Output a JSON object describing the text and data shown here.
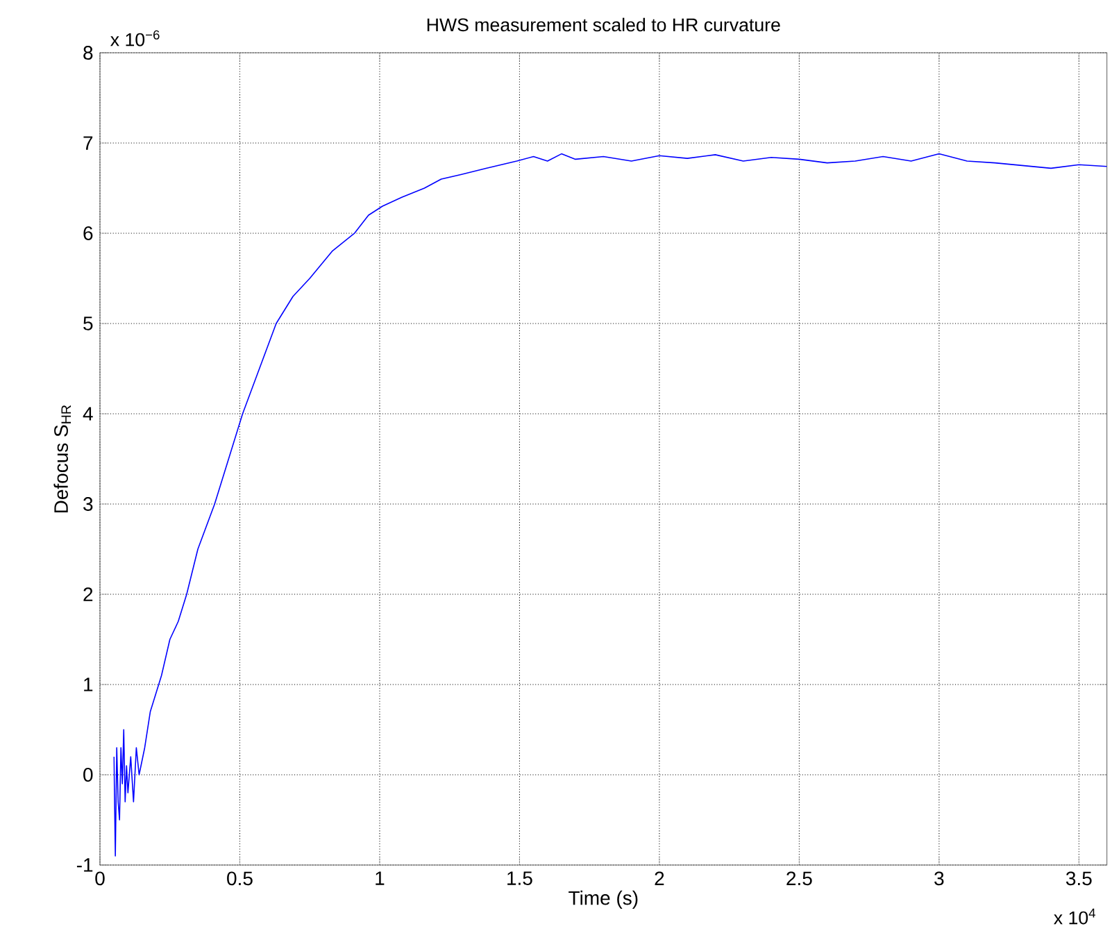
{
  "chart_data": {
    "type": "line",
    "title": "HWS measurement scaled to HR curvature",
    "xlabel": "Time (s)",
    "ylabel": "Defocus S$_{HR}$",
    "annotations": [
      "x 10$^{−6}$",
      "x 10$^{4}$"
    ],
    "xlim": [
      0,
      3.6
    ],
    "ylim": [
      -1,
      8
    ],
    "xticks": [
      0,
      0.5,
      1,
      1.5,
      2,
      2.5,
      3,
      3.5
    ],
    "yticks": [
      -1,
      0,
      1,
      2,
      3,
      4,
      5,
      6,
      7,
      8
    ],
    "grid": true,
    "marker": "none",
    "line_style": "solid",
    "series": [
      {
        "color": "#0000ff",
        "x": [
          0.05,
          0.055,
          0.06,
          0.065,
          0.07,
          0.075,
          0.08,
          0.085,
          0.09,
          0.095,
          0.1,
          0.11,
          0.12,
          0.13,
          0.14,
          0.16,
          0.18,
          0.2,
          0.22,
          0.25,
          0.28,
          0.31,
          0.35,
          0.41,
          0.46,
          0.51,
          0.57,
          0.63,
          0.69,
          0.75,
          0.83,
          0.91,
          0.96,
          1.01,
          1.08,
          1.16,
          1.22,
          1.29,
          1.38,
          1.49,
          1.55,
          1.6,
          1.65,
          1.7,
          1.8,
          1.9,
          2.0,
          2.1,
          2.2,
          2.3,
          2.4,
          2.5,
          2.6,
          2.7,
          2.8,
          2.9,
          3.0,
          3.1,
          3.2,
          3.3,
          3.4,
          3.5,
          3.6
        ],
        "values": [
          0.2,
          -0.9,
          0.3,
          -0.3,
          -0.5,
          0.3,
          -0.1,
          0.5,
          -0.3,
          0.1,
          -0.2,
          0.2,
          -0.3,
          0.3,
          0.0,
          0.3,
          0.7,
          0.9,
          1.1,
          1.5,
          1.7,
          2.0,
          2.5,
          3.0,
          3.5,
          4.0,
          4.5,
          5.0,
          5.3,
          5.5,
          5.8,
          6.0,
          6.2,
          6.3,
          6.4,
          6.5,
          6.6,
          6.65,
          6.72,
          6.8,
          6.85,
          6.8,
          6.88,
          6.82,
          6.85,
          6.8,
          6.86,
          6.83,
          6.87,
          6.8,
          6.84,
          6.82,
          6.78,
          6.8,
          6.85,
          6.8,
          6.88,
          6.8,
          6.78,
          6.75,
          6.72,
          6.76,
          6.74
        ]
      }
    ]
  }
}
